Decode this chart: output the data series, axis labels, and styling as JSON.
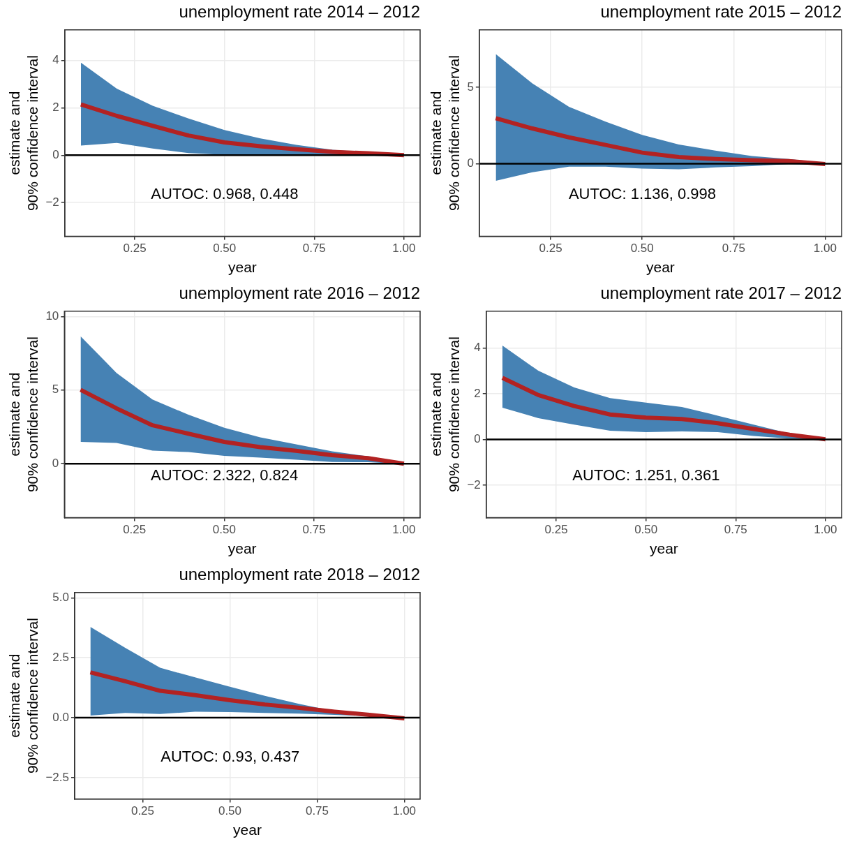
{
  "chart_data": [
    {
      "type": "line",
      "title": "unemployment rate 2014 – 2012",
      "xlabel": "year",
      "ylabel": "estimate and\n90% confidence interval",
      "x": [
        0.1,
        0.2,
        0.3,
        0.4,
        0.5,
        0.6,
        0.7,
        0.8,
        0.9,
        1.0
      ],
      "series": [
        {
          "color": "#b22222",
          "values": [
            2.14,
            1.66,
            1.24,
            0.83,
            0.54,
            0.38,
            0.25,
            0.14,
            0.08,
            0
          ],
          "lower": [
            0.41,
            0.52,
            0.28,
            0.09,
            0.02,
            0.01,
            0.01,
            0.01,
            0.03,
            -0.01
          ],
          "upper": [
            3.91,
            2.81,
            2.09,
            1.55,
            1.06,
            0.71,
            0.44,
            0.23,
            0.12,
            0.02
          ]
        }
      ],
      "xlim": [
        0.055,
        1.045
      ],
      "xticks": [
        {
          "value": 0.25,
          "label": "0.25"
        },
        {
          "value": 0.5,
          "label": "0.50"
        },
        {
          "value": 0.75,
          "label": "0.75"
        },
        {
          "value": 1,
          "label": "1.00"
        }
      ],
      "ylim": [
        -3.42,
        5.29
      ],
      "yticks": [
        {
          "value": -2,
          "label": "−2"
        },
        0,
        2,
        4
      ],
      "grid": true,
      "ref_lines": [
        {
          "axis": "y",
          "value": 0,
          "color": "#000000"
        }
      ],
      "annotations": [
        "AUTOC: 0.968, 0.448"
      ]
    },
    {
      "type": "line",
      "title": "unemployment rate 2015 – 2012",
      "xlabel": "year",
      "ylabel": "estimate and\n90% confidence interval",
      "x": [
        0.1,
        0.2,
        0.3,
        0.4,
        0.5,
        0.6,
        0.7,
        0.8,
        0.9,
        1.0
      ],
      "series": [
        {
          "color": "#b22222",
          "values": [
            2.97,
            2.3,
            1.72,
            1.22,
            0.72,
            0.43,
            0.3,
            0.22,
            0.17,
            -0.03
          ],
          "lower": [
            -1.12,
            -0.57,
            -0.2,
            -0.2,
            -0.33,
            -0.37,
            -0.25,
            -0.17,
            -0.03,
            -0.08
          ],
          "upper": [
            7.17,
            5.25,
            3.72,
            2.75,
            1.88,
            1.25,
            0.85,
            0.5,
            0.3,
            0.05
          ]
        }
      ],
      "xlim": [
        0.055,
        1.045
      ],
      "xticks": [
        {
          "value": 0.25,
          "label": "0.25"
        },
        {
          "value": 0.5,
          "label": "0.50"
        },
        {
          "value": 0.75,
          "label": "0.75"
        },
        {
          "value": 1,
          "label": "1.00"
        }
      ],
      "ylim": [
        -4.75,
        8.75
      ],
      "yticks": [
        0,
        5
      ],
      "grid": true,
      "ref_lines": [
        {
          "axis": "y",
          "value": 0,
          "color": "#000000"
        }
      ],
      "annotations": [
        "AUTOC: 1.136, 0.998"
      ]
    },
    {
      "type": "line",
      "title": "unemployment rate 2016 – 2012",
      "xlabel": "year",
      "ylabel": "estimate and\n90% confidence interval",
      "x": [
        0.1,
        0.2,
        0.3,
        0.4,
        0.5,
        0.6,
        0.7,
        0.8,
        0.9,
        1.0
      ],
      "series": [
        {
          "color": "#b22222",
          "values": [
            5.02,
            3.76,
            2.61,
            2.04,
            1.48,
            1.13,
            0.88,
            0.58,
            0.38,
            0
          ],
          "lower": [
            1.48,
            1.41,
            0.89,
            0.79,
            0.53,
            0.41,
            0.27,
            0.12,
            0.1,
            -0.02
          ],
          "upper": [
            8.66,
            6.17,
            4.36,
            3.33,
            2.44,
            1.79,
            1.31,
            0.84,
            0.5,
            0.07
          ]
        }
      ],
      "xlim": [
        0.055,
        1.045
      ],
      "xticks": [
        {
          "value": 0.25,
          "label": "0.25"
        },
        {
          "value": 0.5,
          "label": "0.50"
        },
        {
          "value": 0.75,
          "label": "0.75"
        },
        {
          "value": 1,
          "label": "1.00"
        }
      ],
      "ylim": [
        -3.66,
        10.36
      ],
      "yticks": [
        0,
        5,
        10
      ],
      "grid": true,
      "ref_lines": [
        {
          "axis": "y",
          "value": 0,
          "color": "#000000"
        }
      ],
      "annotations": [
        "AUTOC: 2.322, 0.824"
      ]
    },
    {
      "type": "line",
      "title": "unemployment rate 2017 – 2012",
      "xlabel": "year",
      "ylabel": "estimate and\n90% confidence interval",
      "x": [
        0.1,
        0.2,
        0.3,
        0.4,
        0.5,
        0.6,
        0.7,
        0.8,
        0.9,
        1.0
      ],
      "series": [
        {
          "color": "#b22222",
          "values": [
            2.69,
            1.94,
            1.46,
            1.09,
            0.95,
            0.89,
            0.71,
            0.46,
            0.21,
            0.01
          ],
          "lower": [
            1.39,
            0.93,
            0.65,
            0.38,
            0.32,
            0.35,
            0.32,
            0.15,
            0.04,
            -0.01
          ],
          "upper": [
            4.1,
            3.0,
            2.27,
            1.81,
            1.61,
            1.42,
            1.04,
            0.65,
            0.26,
            0.04
          ]
        }
      ],
      "xlim": [
        0.055,
        1.045
      ],
      "xticks": [
        {
          "value": 0.25,
          "label": "0.25"
        },
        {
          "value": 0.5,
          "label": "0.50"
        },
        {
          "value": 0.75,
          "label": "0.75"
        },
        {
          "value": 1,
          "label": "1.00"
        }
      ],
      "ylim": [
        -3.41,
        5.6
      ],
      "yticks": [
        {
          "value": -2,
          "label": "−2"
        },
        0,
        2,
        4
      ],
      "grid": true,
      "ref_lines": [
        {
          "axis": "y",
          "value": 0,
          "color": "#000000"
        }
      ],
      "annotations": [
        "AUTOC: 1.251, 0.361"
      ]
    },
    {
      "type": "line",
      "title": "unemployment rate 2018 – 2012",
      "xlabel": "year",
      "ylabel": "estimate and\n90% confidence interval",
      "x": [
        0.1,
        0.2,
        0.3,
        0.4,
        0.5,
        0.6,
        0.7,
        0.8,
        0.9,
        1.0
      ],
      "series": [
        {
          "color": "#b22222",
          "values": [
            1.89,
            1.52,
            1.12,
            0.94,
            0.73,
            0.55,
            0.41,
            0.25,
            0.12,
            -0.03
          ],
          "lower": [
            0.09,
            0.2,
            0.15,
            0.25,
            0.23,
            0.2,
            0.17,
            0.12,
            0.06,
            0
          ],
          "upper": [
            3.79,
            2.91,
            2.08,
            1.68,
            1.29,
            0.91,
            0.57,
            0.27,
            0.09,
            0.02
          ]
        }
      ],
      "xlim": [
        0.055,
        1.045
      ],
      "xticks": [
        {
          "value": 0.25,
          "label": "0.25"
        },
        {
          "value": 0.5,
          "label": "0.50"
        },
        {
          "value": 0.75,
          "label": "0.75"
        },
        {
          "value": 1,
          "label": "1.00"
        }
      ],
      "ylim": [
        -3.39,
        5.22
      ],
      "yticks": [
        {
          "value": -2.5,
          "label": "−2.5"
        },
        {
          "value": 0,
          "label": "0.0"
        },
        {
          "value": 2.5,
          "label": "2.5"
        },
        {
          "value": 5,
          "label": "5.0"
        }
      ],
      "grid": true,
      "ref_lines": [
        {
          "axis": "y",
          "value": 0,
          "color": "#000000"
        }
      ],
      "annotations": [
        "AUTOC: 0.93, 0.437"
      ]
    }
  ]
}
